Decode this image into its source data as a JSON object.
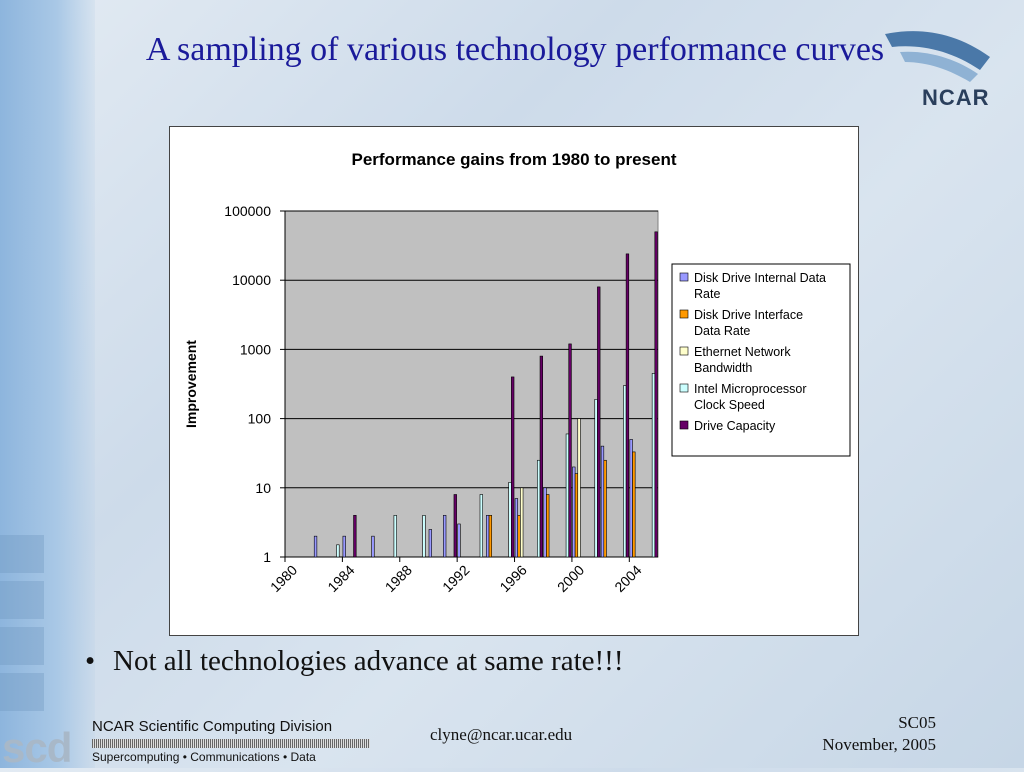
{
  "slide": {
    "title": "A sampling of various technology performance curves",
    "bullet": "Not all technologies advance at same rate!!!",
    "logo_text": "NCAR",
    "footer": {
      "org_logo": "scd",
      "division": "NCAR Scientific Computing Division",
      "tagline": "Supercomputing • Communications • Data",
      "email": "clyne@ncar.ucar.edu",
      "conference": "SC05",
      "date": "November, 2005"
    }
  },
  "chart_data": {
    "type": "bar",
    "title": "Performance gains from 1980 to present",
    "xlabel": "",
    "ylabel": "Improvement",
    "yscale": "log",
    "ylim": [
      1,
      100000
    ],
    "yticks": [
      "1",
      "10",
      "100",
      "1000",
      "10000",
      "100000"
    ],
    "xtick_labels": [
      "1980",
      "1984",
      "1988",
      "1992",
      "1996",
      "2000",
      "2004"
    ],
    "categories": [
      1980,
      1981,
      1982,
      1983,
      1984,
      1985,
      1986,
      1987,
      1988,
      1989,
      1990,
      1991,
      1992,
      1993,
      1994,
      1995,
      1996,
      1997,
      1998,
      1999,
      2000,
      2001,
      2002,
      2003,
      2004,
      2005
    ],
    "grid": "horizontal",
    "legend_position": "right",
    "series": [
      {
        "name": "Disk Drive Internal Data Rate",
        "color": "#9999ff",
        "values": [
          null,
          null,
          2,
          null,
          2,
          null,
          2,
          null,
          null,
          null,
          2.5,
          4,
          3,
          null,
          4,
          null,
          7,
          null,
          10,
          null,
          20,
          null,
          40,
          null,
          50,
          null
        ]
      },
      {
        "name": "Disk Drive  Interface Data Rate",
        "color": "#ff9900",
        "values": [
          null,
          null,
          null,
          null,
          null,
          null,
          null,
          null,
          null,
          null,
          null,
          null,
          null,
          null,
          4,
          null,
          4,
          null,
          8,
          null,
          16,
          null,
          25,
          null,
          33,
          null
        ]
      },
      {
        "name": "Ethernet Network Bandwidth",
        "color": "#ffffcc",
        "values": [
          null,
          null,
          null,
          null,
          null,
          null,
          null,
          null,
          null,
          null,
          null,
          null,
          null,
          null,
          null,
          null,
          10,
          null,
          null,
          null,
          100,
          null,
          null,
          null,
          null,
          null
        ]
      },
      {
        "name": "Intel Microprocessor Clock Speed",
        "color": "#ccffff",
        "values": [
          null,
          null,
          null,
          1.5,
          null,
          null,
          null,
          4,
          null,
          4,
          null,
          null,
          null,
          8,
          null,
          12,
          null,
          25,
          null,
          60,
          null,
          190,
          null,
          300,
          null,
          450
        ]
      },
      {
        "name": "Drive Capacity",
        "color": "#660066",
        "values": [
          null,
          null,
          null,
          null,
          4,
          null,
          null,
          null,
          null,
          null,
          null,
          8,
          null,
          null,
          null,
          400,
          null,
          800,
          null,
          1200,
          null,
          8000,
          null,
          24000,
          null,
          50000
        ]
      }
    ]
  }
}
